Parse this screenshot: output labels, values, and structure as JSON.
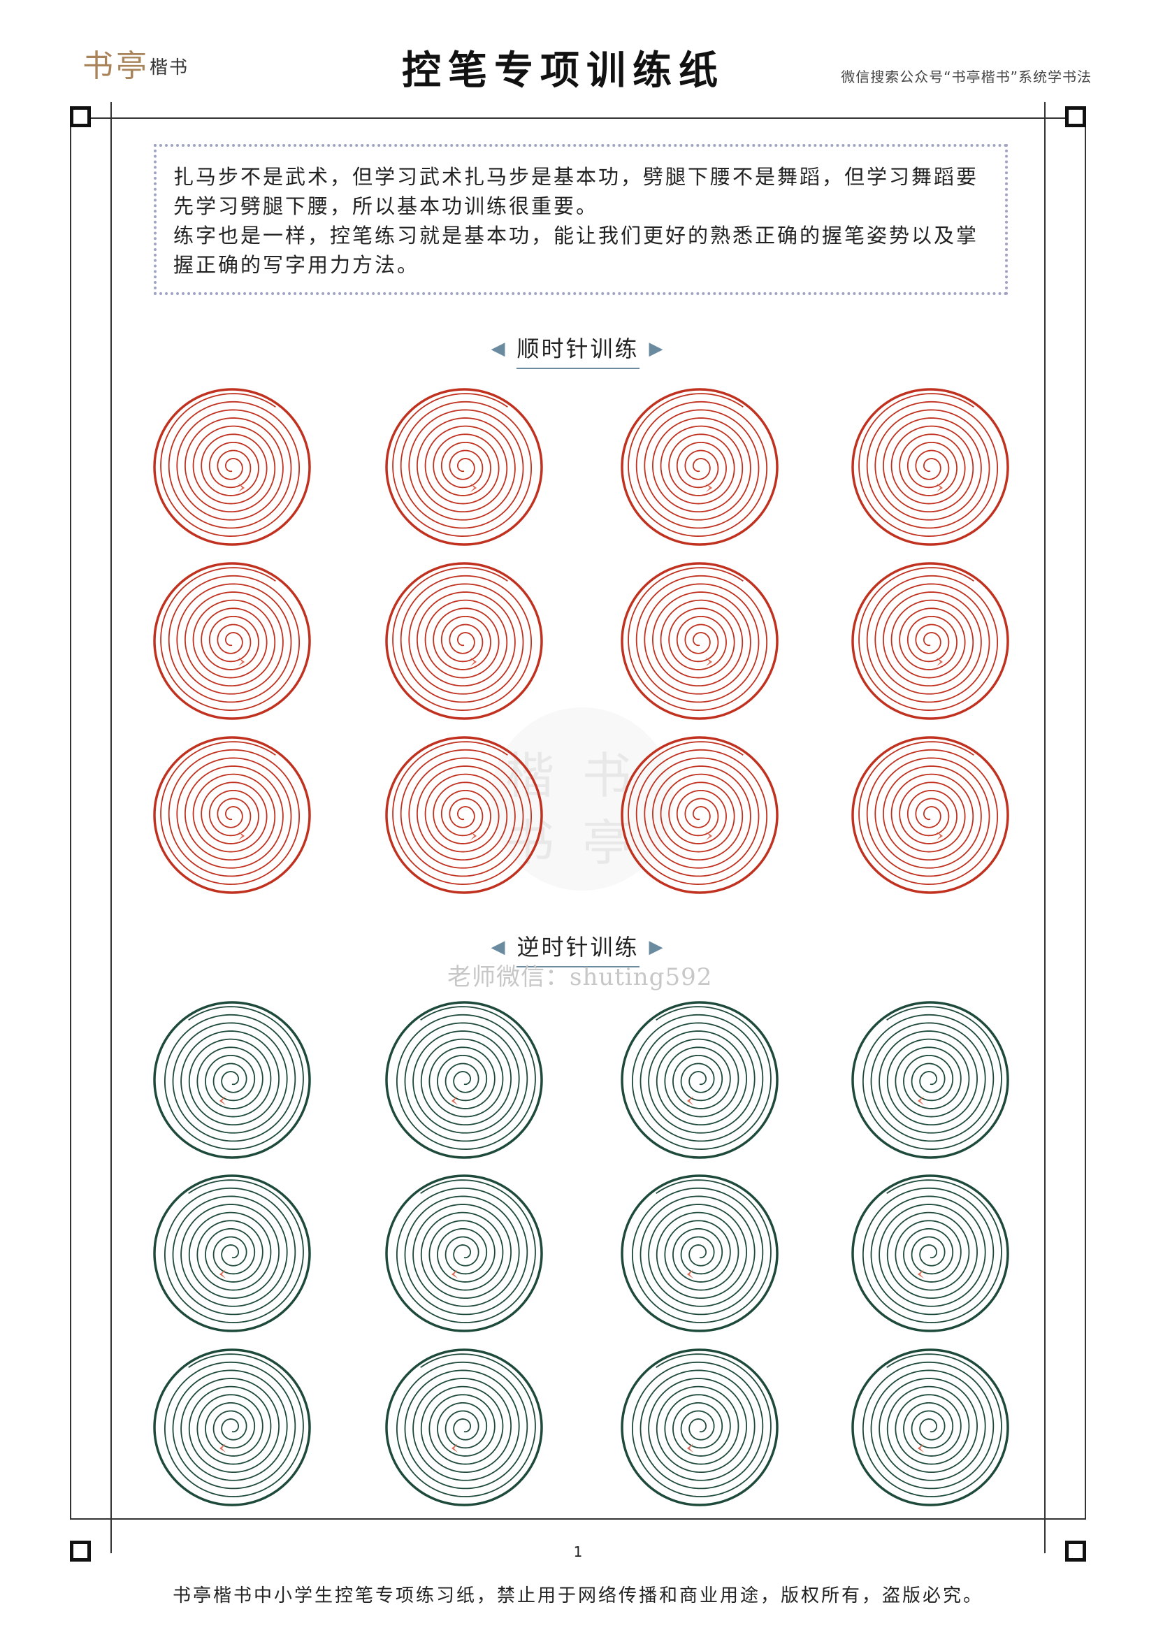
{
  "header": {
    "logo_big": "书亭",
    "logo_small": "楷书",
    "title": "控笔专项训练纸",
    "note": "微信搜索公众号“书亭楷书”系统学书法"
  },
  "intro": {
    "line1": "扎马步不是武术，但学习武术扎马步是基本功，劈腿下腰不是舞蹈，但学习舞蹈要先学习劈腿下腰，所以基本功训练很重要。",
    "line2": "练字也是一样，控笔练习就是基本功，能让我们更好的熟悉正确的握笔姿势以及掌握正确的写字用力方法。"
  },
  "sections": {
    "clockwise": {
      "title": "顺时针训练",
      "color": "#c0321f",
      "rows": 3,
      "cols": 4
    },
    "counterclockwise": {
      "title": "逆时针训练",
      "color": "#1e4a3a",
      "rows": 3,
      "cols": 4
    }
  },
  "arrow_color": "#e06a55",
  "arrow_glyphs": {
    "left": "◀",
    "right": "▶"
  },
  "watermark": {
    "text": "楷书\n书亭",
    "teacher": "老师微信：shuting592"
  },
  "page_number": "1",
  "footer": "书亭楷书中小学生控笔专项练习纸，禁止用于网络传播和商业用途，版权所有，盗版必究。"
}
